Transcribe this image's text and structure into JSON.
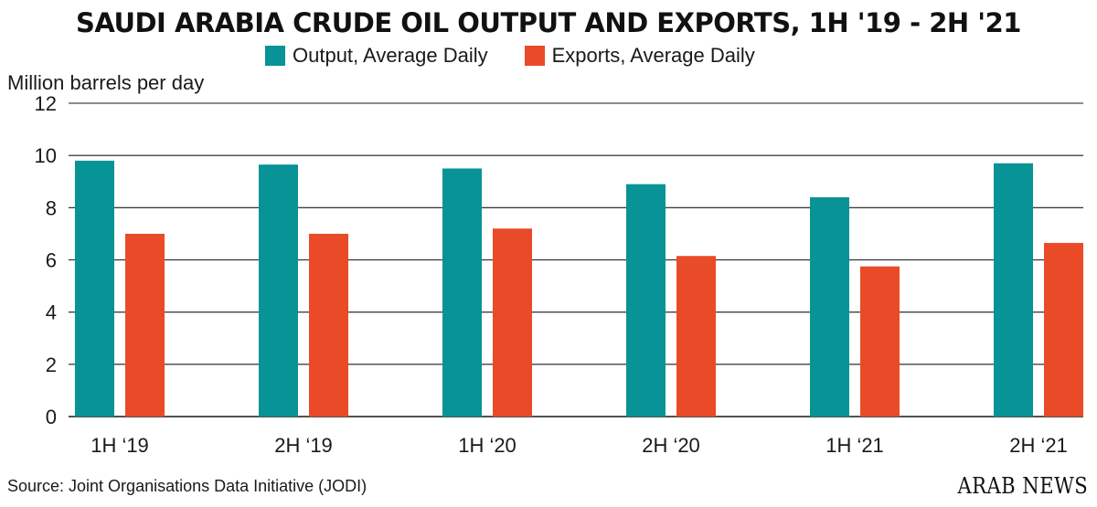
{
  "chart_data": {
    "type": "bar",
    "title": "SAUDI ARABIA CRUDE OIL OUTPUT AND EXPORTS, 1H '19 - 2H '21",
    "ylabel": "Million barrels per day",
    "xlabel": "",
    "categories": [
      "1H ‘19",
      "2H ‘19",
      "1H ‘20",
      "2H ‘20",
      "1H ‘21",
      "2H ‘21"
    ],
    "series": [
      {
        "name": "Output, Average Daily",
        "color": "#089396",
        "values": [
          9.8,
          9.65,
          9.5,
          8.9,
          8.4,
          9.7
        ]
      },
      {
        "name": "Exports, Average Daily",
        "color": "#e94b28",
        "values": [
          7.0,
          7.0,
          7.2,
          6.15,
          5.75,
          6.65
        ]
      }
    ],
    "ylim": [
      0,
      12
    ],
    "yticks": [
      0,
      2,
      4,
      6,
      8,
      10,
      12
    ],
    "grid": true,
    "legend_position": "top"
  },
  "source": "Source: Joint Organisations Data Initiative (JODI)",
  "logo": "ARAB NEWS"
}
